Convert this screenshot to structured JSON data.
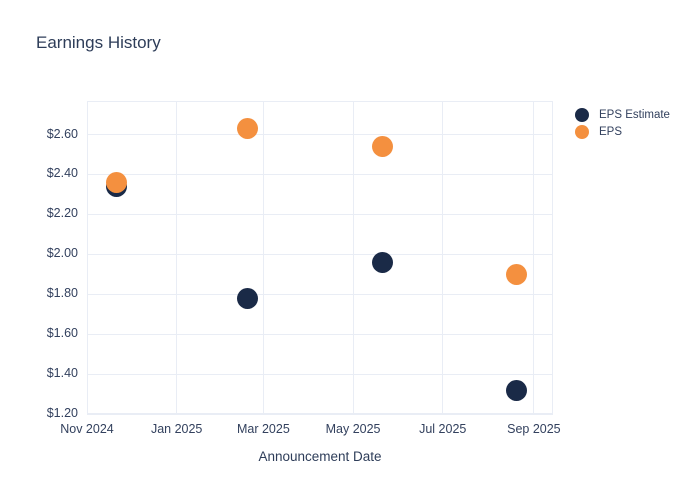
{
  "chart_data": {
    "type": "scatter",
    "title": "Earnings History",
    "xlabel": "Announcement Date",
    "ylabel": "",
    "background_color": "#ffffff",
    "grid": true,
    "gridline_color": "#e9edf5",
    "text_color": "#33415e",
    "title_color": "#2e3d59",
    "marker_diameter_px": 21,
    "x_axis": {
      "type": "date",
      "range": [
        "2024-11-01",
        "2025-09-14"
      ],
      "ticks": [
        {
          "date": "2024-11-01",
          "label": "Nov 2024"
        },
        {
          "date": "2025-01-01",
          "label": "Jan 2025"
        },
        {
          "date": "2025-03-01",
          "label": "Mar 2025"
        },
        {
          "date": "2025-05-01",
          "label": "May 2025"
        },
        {
          "date": "2025-07-01",
          "label": "Jul 2025"
        },
        {
          "date": "2025-09-01",
          "label": "Sep 2025"
        }
      ]
    },
    "y_axis": {
      "range": [
        1.2,
        2.768
      ],
      "ticks": [
        {
          "value": 2.6,
          "label": "$2.60"
        },
        {
          "value": 2.4,
          "label": "$2.40"
        },
        {
          "value": 2.2,
          "label": "$2.20"
        },
        {
          "value": 2.0,
          "label": "$2.00"
        },
        {
          "value": 1.8,
          "label": "$1.80"
        },
        {
          "value": 1.6,
          "label": "$1.60"
        },
        {
          "value": 1.4,
          "label": "$1.40"
        },
        {
          "value": 1.2,
          "label": "$1.20"
        }
      ]
    },
    "legend": {
      "position": "top-right",
      "entries": [
        "EPS Estimate",
        "EPS"
      ]
    },
    "series": [
      {
        "name": "EPS Estimate",
        "color": "#1a2a47",
        "points": [
          {
            "date": "2024-11-21",
            "value": 2.34
          },
          {
            "date": "2025-02-18",
            "value": 1.78
          },
          {
            "date": "2025-05-21",
            "value": 1.96
          },
          {
            "date": "2025-08-20",
            "value": 1.32
          }
        ]
      },
      {
        "name": "EPS",
        "color": "#f4903f",
        "points": [
          {
            "date": "2024-11-21",
            "value": 2.36
          },
          {
            "date": "2025-02-18",
            "value": 2.63
          },
          {
            "date": "2025-05-21",
            "value": 2.54
          },
          {
            "date": "2025-08-20",
            "value": 1.9
          }
        ]
      }
    ]
  }
}
